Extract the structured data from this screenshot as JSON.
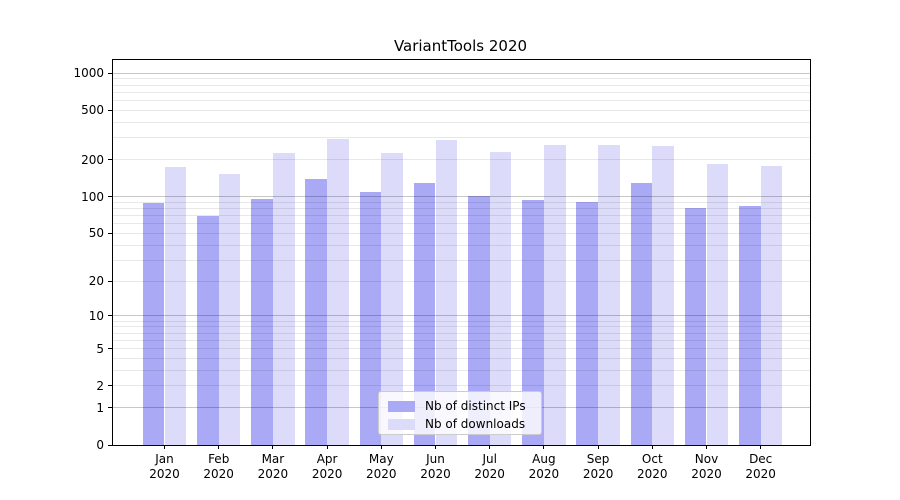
{
  "title": "VariantTools 2020",
  "colors": {
    "distinct_ips_bar": "#a9a9f6",
    "downloads_bar": "#dcdcfa",
    "major_gridline": "rgba(0,0,0,0.22)",
    "minor_gridline": "rgba(0,0,0,0.09)",
    "axis": "#000000",
    "background": "#ffffff"
  },
  "legend": {
    "items": [
      {
        "label": "Nb of distinct IPs"
      },
      {
        "label": "Nb of downloads"
      }
    ]
  },
  "x_axis": {
    "months": [
      "Jan",
      "Feb",
      "Mar",
      "Apr",
      "May",
      "Jun",
      "Jul",
      "Aug",
      "Sep",
      "Oct",
      "Nov",
      "Dec"
    ],
    "year_line": "2020"
  },
  "y_axis": {
    "tick_labels": [
      "0",
      "1",
      "2",
      "5",
      "10",
      "20",
      "50",
      "100",
      "200",
      "500",
      "1000"
    ],
    "tick_values": [
      0,
      1,
      2,
      5,
      10,
      20,
      50,
      100,
      200,
      500,
      1000
    ]
  },
  "chart_data": {
    "type": "bar",
    "title": "VariantTools 2020",
    "categories": [
      "Jan 2020",
      "Feb 2020",
      "Mar 2020",
      "Apr 2020",
      "May 2020",
      "Jun 2020",
      "Jul 2020",
      "Aug 2020",
      "Sep 2020",
      "Oct 2020",
      "Nov 2020",
      "Dec 2020"
    ],
    "series": [
      {
        "name": "Nb of distinct IPs",
        "values": [
          88,
          69,
          95,
          140,
          110,
          128,
          101,
          93,
          91,
          130,
          81,
          84
        ]
      },
      {
        "name": "Nb of downloads",
        "values": [
          173,
          154,
          228,
          295,
          228,
          290,
          229,
          261,
          263,
          260,
          183,
          178
        ]
      }
    ],
    "xlabel": "",
    "ylabel": "",
    "y_scale": "log1p_base10",
    "y_axis_range": [
      0,
      1276
    ],
    "y_tick_values": [
      0,
      1,
      2,
      5,
      10,
      20,
      50,
      100,
      200,
      500,
      1000
    ],
    "major_grid_values": [
      1,
      10,
      100,
      1000
    ],
    "minor_grid_values": [
      2,
      3,
      4,
      5,
      6,
      7,
      8,
      9,
      20,
      30,
      40,
      50,
      60,
      70,
      80,
      90,
      200,
      300,
      400,
      500,
      600,
      700,
      800,
      900
    ],
    "grid": "both",
    "grid_on_top_of_bars": true,
    "legend_position": "lower center"
  }
}
